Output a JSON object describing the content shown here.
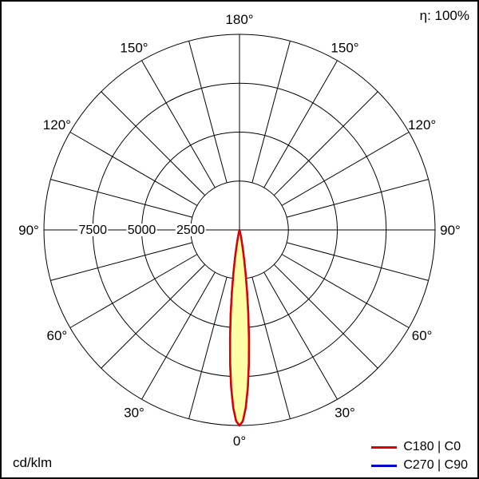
{
  "header": {
    "efficiency_text": "η: 100%"
  },
  "footer": {
    "unit_text": "cd/klm"
  },
  "legend": {
    "items": [
      {
        "label": "C180 | C0",
        "color": "#dd0000"
      },
      {
        "label": "C270 | C90",
        "color": "#0000cc"
      }
    ]
  },
  "chart_data": {
    "type": "polar",
    "subtype": "luminous-intensity-distribution",
    "unit": "cd/klm",
    "efficiency_percent": 100,
    "r_max": 10000,
    "radial_ticks": [
      {
        "value": 2500,
        "label": "2500"
      },
      {
        "value": 5000,
        "label": "5000"
      },
      {
        "value": 7500,
        "label": "7500"
      }
    ],
    "angle_step_deg": 15,
    "angle_labels": [
      {
        "deg": 0,
        "label": "0°"
      },
      {
        "deg": 30,
        "label": "30°"
      },
      {
        "deg": 60,
        "label": "60°"
      },
      {
        "deg": 90,
        "label": "90°"
      },
      {
        "deg": 120,
        "label": "120°"
      },
      {
        "deg": 150,
        "label": "150°"
      },
      {
        "deg": 180,
        "label": "180°"
      }
    ],
    "grid_color": "#000000",
    "series": [
      {
        "name": "C180 | C0",
        "color": "#dd0000",
        "fill": "#ffffa8",
        "symmetric": true,
        "points_deg_cdklm": [
          [
            0,
            10000
          ],
          [
            1,
            9770
          ],
          [
            2,
            9100
          ],
          [
            3,
            8080
          ],
          [
            4,
            6850
          ],
          [
            5,
            5530
          ],
          [
            6,
            4270
          ],
          [
            7,
            3140
          ],
          [
            8,
            2200
          ],
          [
            9,
            1470
          ],
          [
            10,
            940
          ],
          [
            11,
            570
          ],
          [
            12,
            330
          ],
          [
            13,
            180
          ],
          [
            14,
            100
          ],
          [
            15,
            50
          ],
          [
            16,
            20
          ],
          [
            17,
            10
          ],
          [
            18,
            5
          ],
          [
            19,
            2
          ],
          [
            20,
            0
          ]
        ]
      },
      {
        "name": "C270 | C90",
        "color": "#0000cc",
        "fill": "none",
        "symmetric": true,
        "points_deg_cdklm": [
          [
            0,
            10000
          ],
          [
            1,
            9770
          ],
          [
            2,
            9100
          ],
          [
            3,
            8080
          ],
          [
            4,
            6850
          ],
          [
            5,
            5530
          ],
          [
            6,
            4270
          ],
          [
            7,
            3140
          ],
          [
            8,
            2200
          ],
          [
            9,
            1470
          ],
          [
            10,
            940
          ],
          [
            11,
            570
          ],
          [
            12,
            330
          ],
          [
            13,
            180
          ],
          [
            14,
            100
          ],
          [
            15,
            50
          ],
          [
            16,
            20
          ],
          [
            17,
            10
          ],
          [
            18,
            5
          ],
          [
            19,
            2
          ],
          [
            20,
            0
          ]
        ]
      }
    ]
  }
}
